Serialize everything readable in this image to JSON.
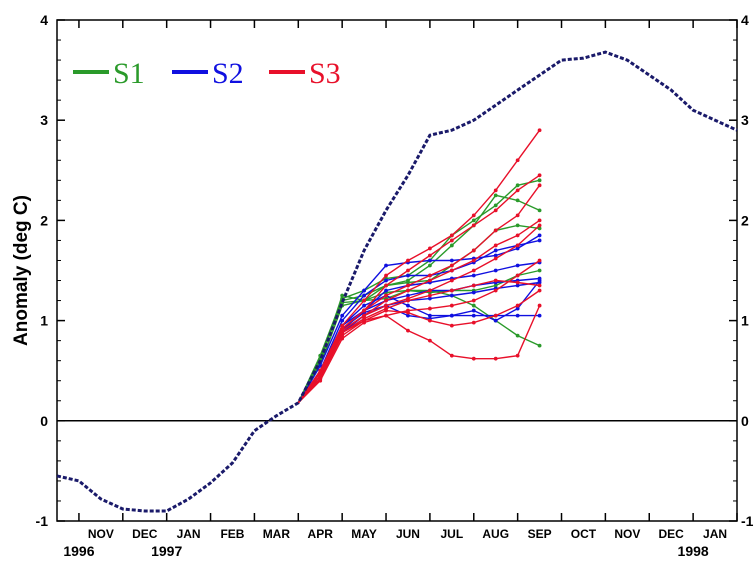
{
  "chart_data": {
    "type": "line",
    "title": "",
    "ylabel": "Anomaly (deg C)",
    "xlabel": "",
    "ylim": [
      -1,
      4
    ],
    "xlim": [
      0,
      15.5
    ],
    "yticks": [
      -1,
      0,
      1,
      2,
      3,
      4
    ],
    "ytick_labels": [
      "-1",
      "0",
      "1",
      "2",
      "3",
      "4"
    ],
    "months": [
      "NOV",
      "DEC",
      "JAN",
      "FEB",
      "MAR",
      "APR",
      "MAY",
      "JUN",
      "JUL",
      "AUG",
      "SEP",
      "OCT",
      "NOV",
      "DEC",
      "JAN"
    ],
    "years": [
      {
        "label": "1996",
        "month_index": 0
      },
      {
        "label": "1997",
        "month_index": 2
      },
      {
        "label": "1998",
        "month_index": 14
      }
    ],
    "grid": false,
    "legend_position": "top-left",
    "zero_line": 0,
    "colors": {
      "S1": "#2a9a2a",
      "S2": "#1010e0",
      "S3": "#e8102a",
      "observed": "#1a1a6a"
    },
    "observed": {
      "x": [
        0,
        0.5,
        1,
        1.5,
        2,
        2.5,
        3,
        3.5,
        4,
        4.5,
        5,
        5.5,
        6,
        6.5,
        7,
        7.5,
        8,
        8.5,
        9,
        9.5,
        10,
        10.5,
        11,
        11.5,
        12,
        12.5,
        13,
        13.5,
        14,
        14.5,
        15.5
      ],
      "y": [
        -0.55,
        -0.6,
        -0.78,
        -0.88,
        -0.9,
        -0.9,
        -0.78,
        -0.62,
        -0.42,
        -0.1,
        0.05,
        0.18,
        0.6,
        1.18,
        1.7,
        2.1,
        2.45,
        2.85,
        2.9,
        3.0,
        3.15,
        3.3,
        3.45,
        3.6,
        3.62,
        3.68,
        3.6,
        3.45,
        3.3,
        3.1,
        2.9
      ]
    },
    "series": [
      {
        "name": "S1",
        "x": [
          5.5,
          6,
          6.5,
          7,
          7.5,
          8,
          8.5,
          9,
          9.5,
          10,
          10.5,
          11
        ],
        "y": [
          0.18,
          0.65,
          1.22,
          1.3,
          1.42,
          1.45,
          1.6,
          1.85,
          2.0,
          2.15,
          2.35,
          2.4
        ]
      },
      {
        "name": "S1",
        "x": [
          5.5,
          6,
          6.5,
          7,
          7.5,
          8,
          8.5,
          9,
          9.5,
          10,
          10.5,
          11
        ],
        "y": [
          0.18,
          0.6,
          1.2,
          1.25,
          1.35,
          1.4,
          1.55,
          1.75,
          1.95,
          2.25,
          2.2,
          2.1
        ]
      },
      {
        "name": "S1",
        "x": [
          5.5,
          6,
          6.5,
          7,
          7.5,
          8,
          8.5,
          9,
          9.5,
          10,
          10.5,
          11
        ],
        "y": [
          0.18,
          0.62,
          1.18,
          1.2,
          1.28,
          1.3,
          1.3,
          1.25,
          1.15,
          1.0,
          0.85,
          0.75
        ]
      },
      {
        "name": "S1",
        "x": [
          5.5,
          6,
          6.5,
          7,
          7.5,
          8,
          8.5,
          9,
          9.5,
          10,
          10.5,
          11
        ],
        "y": [
          0.18,
          0.55,
          1.15,
          1.2,
          1.35,
          1.38,
          1.4,
          1.55,
          1.7,
          1.9,
          1.95,
          1.92
        ]
      },
      {
        "name": "S1",
        "x": [
          5.5,
          6,
          6.5,
          7,
          7.5,
          8,
          8.5,
          9,
          9.5,
          10,
          10.5,
          11
        ],
        "y": [
          0.18,
          0.58,
          1.25,
          1.2,
          1.22,
          1.3,
          1.28,
          1.3,
          1.3,
          1.35,
          1.45,
          1.5
        ]
      },
      {
        "name": "S2",
        "x": [
          5.5,
          6,
          6.5,
          7,
          7.5,
          8,
          8.5,
          9,
          9.5,
          10,
          10.5,
          11
        ],
        "y": [
          0.18,
          0.55,
          1.05,
          1.3,
          1.55,
          1.58,
          1.6,
          1.6,
          1.62,
          1.65,
          1.72,
          1.85
        ]
      },
      {
        "name": "S2",
        "x": [
          5.5,
          6,
          6.5,
          7,
          7.5,
          8,
          8.5,
          9,
          9.5,
          10,
          10.5,
          11
        ],
        "y": [
          0.18,
          0.5,
          1.0,
          1.25,
          1.4,
          1.45,
          1.45,
          1.5,
          1.58,
          1.7,
          1.75,
          1.8
        ]
      },
      {
        "name": "S2",
        "x": [
          5.5,
          6,
          6.5,
          7,
          7.5,
          8,
          8.5,
          9,
          9.5,
          10,
          10.5,
          11
        ],
        "y": [
          0.18,
          0.45,
          0.95,
          1.1,
          1.3,
          1.35,
          1.38,
          1.42,
          1.45,
          1.5,
          1.55,
          1.58
        ]
      },
      {
        "name": "S2",
        "x": [
          5.5,
          6,
          6.5,
          7,
          7.5,
          8,
          8.5,
          9,
          9.5,
          10,
          10.5,
          11
        ],
        "y": [
          0.18,
          0.45,
          0.9,
          1.1,
          1.2,
          1.25,
          1.3,
          1.3,
          1.35,
          1.38,
          1.4,
          1.42
        ]
      },
      {
        "name": "S2",
        "x": [
          5.5,
          6,
          6.5,
          7,
          7.5,
          8,
          8.5,
          9,
          9.5,
          10,
          10.5,
          11
        ],
        "y": [
          0.18,
          0.42,
          0.88,
          1.05,
          1.15,
          1.2,
          1.22,
          1.25,
          1.28,
          1.32,
          1.35,
          1.38
        ]
      },
      {
        "name": "S2",
        "x": [
          5.5,
          6,
          6.5,
          7,
          7.5,
          8,
          8.5,
          9,
          9.5,
          10,
          10.5,
          11
        ],
        "y": [
          0.18,
          0.45,
          0.95,
          1.15,
          1.25,
          1.15,
          1.05,
          1.05,
          1.05,
          1.05,
          1.05,
          1.05
        ]
      },
      {
        "name": "S2",
        "x": [
          5.5,
          6,
          6.5,
          7,
          7.5,
          8,
          8.5,
          9,
          9.5,
          10,
          10.5,
          11
        ],
        "y": [
          0.18,
          0.45,
          0.92,
          1.08,
          1.15,
          1.05,
          1.02,
          1.05,
          1.1,
          1.0,
          1.12,
          1.4
        ]
      },
      {
        "name": "S3",
        "x": [
          5.5,
          6,
          6.5,
          7,
          7.5,
          8,
          8.5,
          9,
          9.5,
          10,
          10.5,
          11
        ],
        "y": [
          0.18,
          0.5,
          0.95,
          1.2,
          1.45,
          1.6,
          1.72,
          1.85,
          2.05,
          2.3,
          2.6,
          2.9
        ]
      },
      {
        "name": "S3",
        "x": [
          5.5,
          6,
          6.5,
          7,
          7.5,
          8,
          8.5,
          9,
          9.5,
          10,
          10.5,
          11
        ],
        "y": [
          0.18,
          0.48,
          0.92,
          1.1,
          1.35,
          1.5,
          1.65,
          1.8,
          1.95,
          2.1,
          2.3,
          2.45
        ]
      },
      {
        "name": "S3",
        "x": [
          5.5,
          6,
          6.5,
          7,
          7.5,
          8,
          8.5,
          9,
          9.5,
          10,
          10.5,
          11
        ],
        "y": [
          0.18,
          0.45,
          0.9,
          1.05,
          1.2,
          1.3,
          1.4,
          1.5,
          1.6,
          1.75,
          1.85,
          2.0
        ]
      },
      {
        "name": "S3",
        "x": [
          5.5,
          6,
          6.5,
          7,
          7.5,
          8,
          8.5,
          9,
          9.5,
          10,
          10.5,
          11
        ],
        "y": [
          0.18,
          0.45,
          0.88,
          1.02,
          1.12,
          1.2,
          1.25,
          1.3,
          1.35,
          1.4,
          1.38,
          1.35
        ]
      },
      {
        "name": "S3",
        "x": [
          5.5,
          6,
          6.5,
          7,
          7.5,
          8,
          8.5,
          9,
          9.5,
          10,
          10.5,
          11
        ],
        "y": [
          0.18,
          0.42,
          0.85,
          1.0,
          1.05,
          0.9,
          0.8,
          0.65,
          0.62,
          0.62,
          0.65,
          1.15
        ]
      },
      {
        "name": "S3",
        "x": [
          5.5,
          6,
          6.5,
          7,
          7.5,
          8,
          8.5,
          9,
          9.5,
          10,
          10.5,
          11
        ],
        "y": [
          0.18,
          0.42,
          0.88,
          1.0,
          1.1,
          1.08,
          1.0,
          0.95,
          0.98,
          1.05,
          1.15,
          1.3
        ]
      },
      {
        "name": "S3",
        "x": [
          5.5,
          6,
          6.5,
          7,
          7.5,
          8,
          8.5,
          9,
          9.5,
          10,
          10.5,
          11
        ],
        "y": [
          0.18,
          0.45,
          0.9,
          1.05,
          1.15,
          1.22,
          1.3,
          1.4,
          1.5,
          1.62,
          1.75,
          1.95
        ]
      },
      {
        "name": "S3",
        "x": [
          5.5,
          6,
          6.5,
          7,
          7.5,
          8,
          8.5,
          9,
          9.5,
          10,
          10.5,
          11
        ],
        "y": [
          0.18,
          0.4,
          0.82,
          0.98,
          1.05,
          1.1,
          1.12,
          1.15,
          1.2,
          1.3,
          1.45,
          1.6
        ]
      },
      {
        "name": "S3",
        "x": [
          5.5,
          6,
          6.5,
          7,
          7.5,
          8,
          8.5,
          9,
          9.5,
          10,
          10.5,
          11
        ],
        "y": [
          0.18,
          0.45,
          0.92,
          1.1,
          1.25,
          1.35,
          1.45,
          1.55,
          1.7,
          1.9,
          2.05,
          2.35
        ]
      }
    ],
    "legend": [
      {
        "label": "S1",
        "color": "#2a9a2a"
      },
      {
        "label": "S2",
        "color": "#1010e0"
      },
      {
        "label": "S3",
        "color": "#e8102a"
      }
    ]
  }
}
